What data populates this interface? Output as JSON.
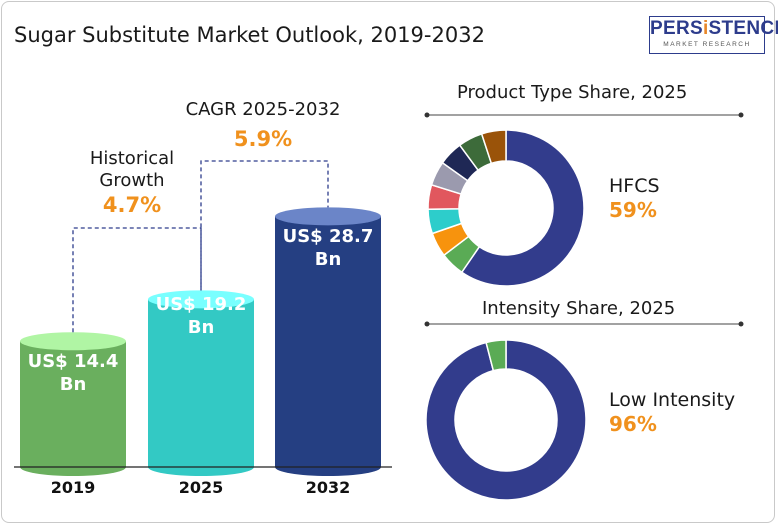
{
  "title": "Sugar Substitute Market Outlook, 2019-2032",
  "logo": {
    "name_pre": "PERS",
    "name_i": "i",
    "name_post": "STENCE",
    "sub": "MARKET RESEARCH"
  },
  "annotations": {
    "historical_label_1": "Historical",
    "historical_label_2": "Growth",
    "historical_value": "4.7%",
    "cagr_label": "CAGR 2025-2032",
    "cagr_value": "5.9%"
  },
  "colors": {
    "bar_2019": "#6aaf5e",
    "bar_2025": "#33c9c4",
    "bar_2032": "#253f82",
    "accent": "#f0911d",
    "donut_main": "#323c8c"
  },
  "chart_data": [
    {
      "type": "bar",
      "title": "",
      "categories": [
        "2019",
        "2025",
        "2032"
      ],
      "values": [
        14.4,
        19.2,
        28.7
      ],
      "value_labels": [
        [
          "US$ 14.4",
          "Bn"
        ],
        [
          "US$ 19.2",
          "Bn"
        ],
        [
          "US$ 28.7",
          "Bn"
        ]
      ],
      "ylim": [
        0,
        30
      ]
    },
    {
      "type": "pie",
      "title": "Product Type Share, 2025",
      "highlight_label": "HFCS",
      "highlight_value": "59%",
      "values": [
        59,
        5,
        5,
        5,
        5,
        5,
        5,
        5,
        5
      ],
      "colors": [
        "#323c8c",
        "#5aab55",
        "#f7930d",
        "#2dcdcb",
        "#e1575e",
        "#9b9aae",
        "#1f2855",
        "#3d6b3a",
        "#9a5309"
      ]
    },
    {
      "type": "pie",
      "title": "Intensity Share, 2025",
      "highlight_label": "Low Intensity",
      "highlight_value": "96%",
      "values": [
        96,
        4
      ],
      "colors": [
        "#323c8c",
        "#5aab55"
      ]
    }
  ]
}
